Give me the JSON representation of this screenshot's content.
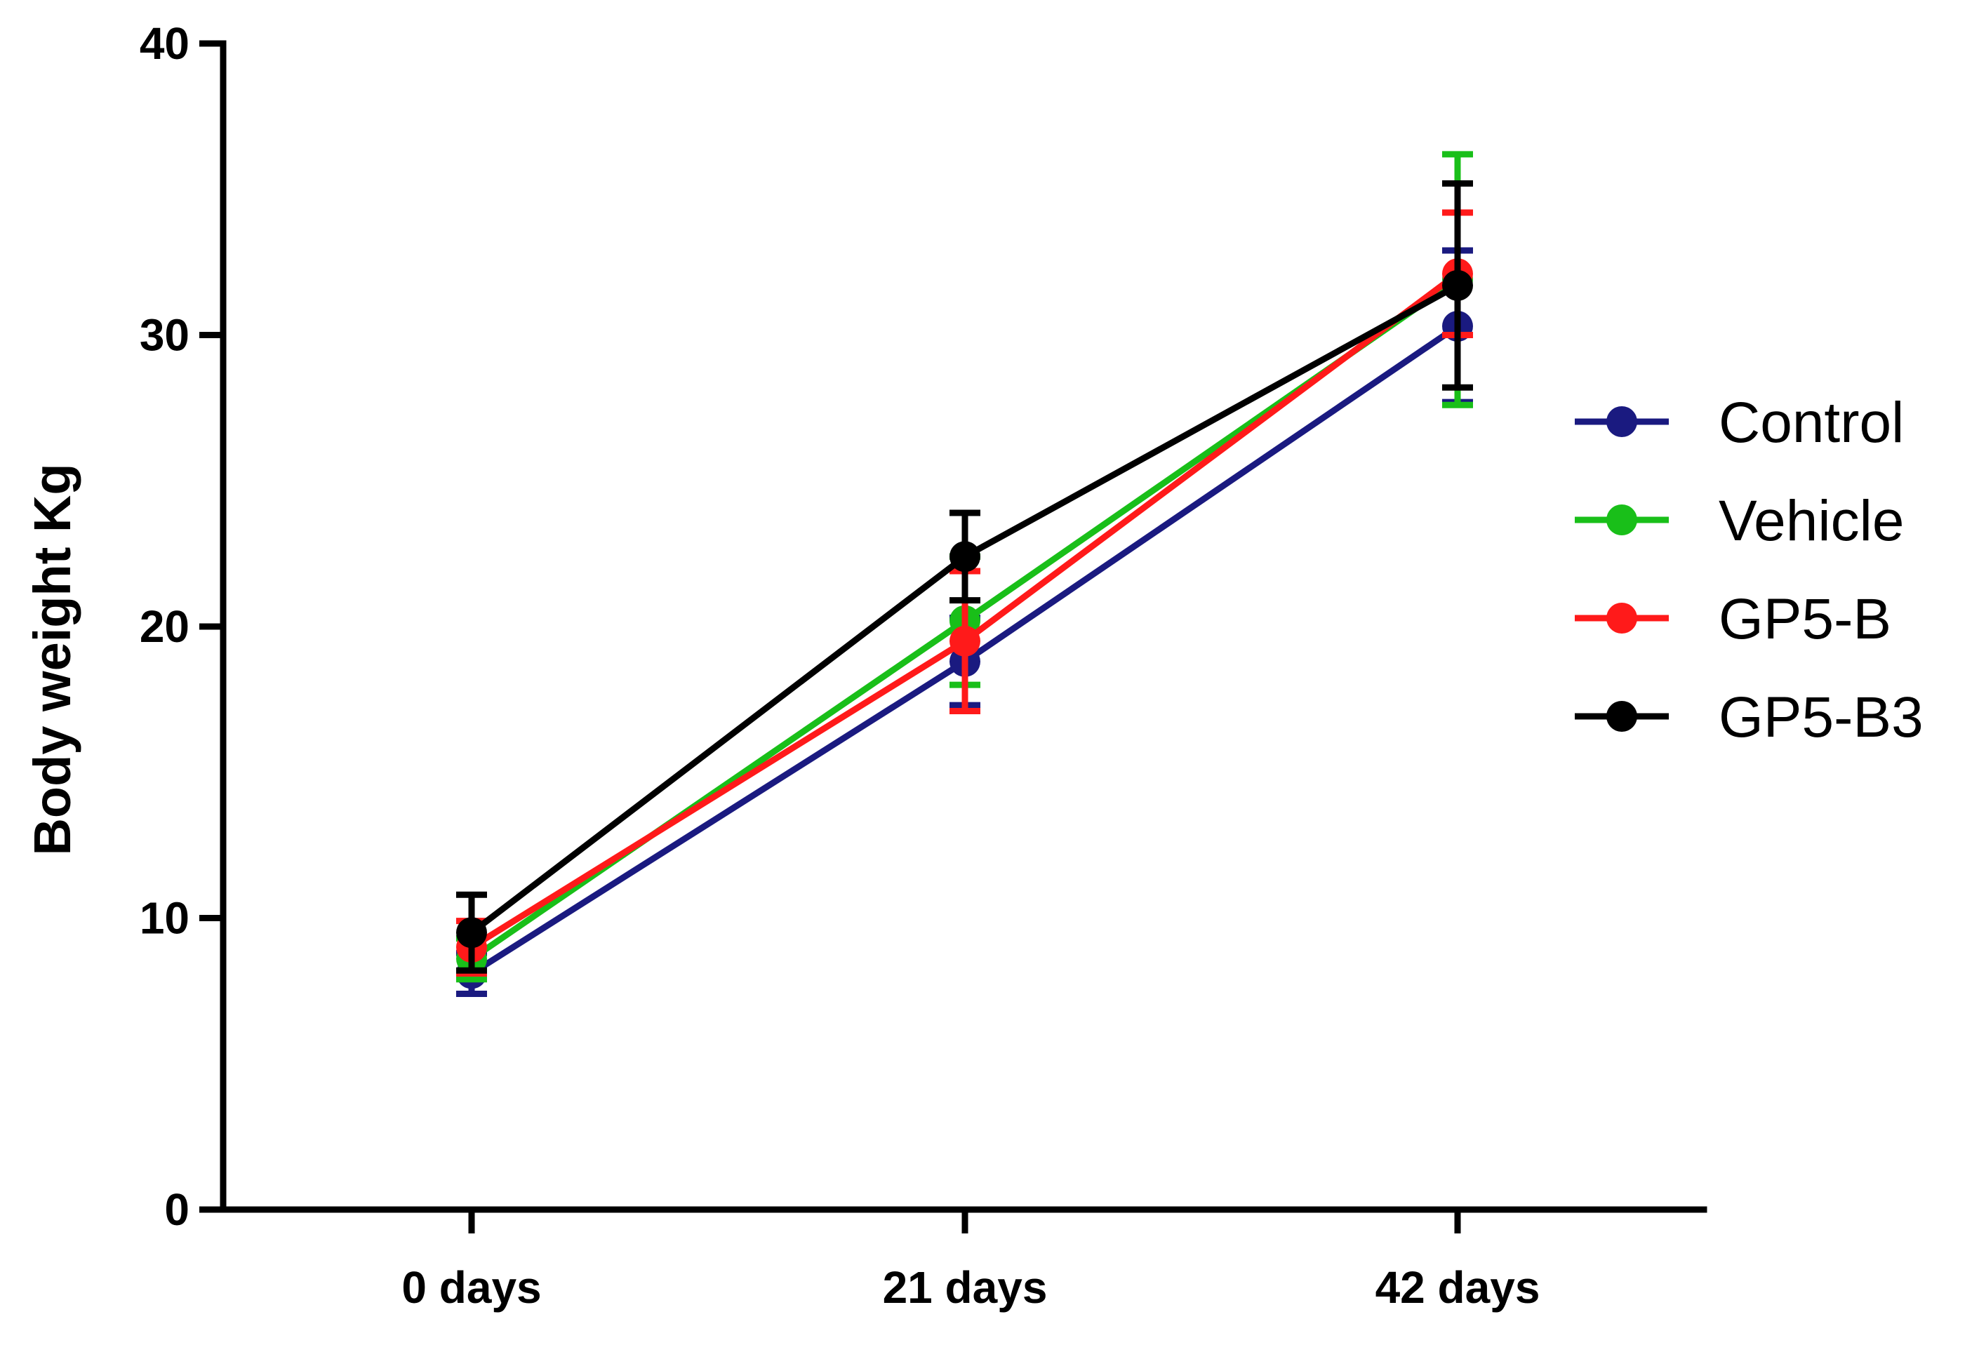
{
  "chart_data": {
    "type": "line",
    "title": "",
    "xlabel": "",
    "ylabel": "Body weight Kg",
    "categories": [
      "0 days",
      "21 days",
      "42 days"
    ],
    "ylim": [
      0,
      40
    ],
    "yticks": [
      0,
      10,
      20,
      30,
      40
    ],
    "grid": false,
    "legend_position": "right",
    "error_bars": true,
    "series": [
      {
        "name": "Control",
        "color": "#1a1a80",
        "values": [
          8.1,
          18.8,
          30.3
        ],
        "error": [
          0.7,
          1.5,
          2.6
        ]
      },
      {
        "name": "Vehicle",
        "color": "#19bf19",
        "values": [
          8.6,
          20.2,
          31.9
        ],
        "error": [
          0.7,
          2.2,
          4.3
        ]
      },
      {
        "name": "GP5-B",
        "color": "#ff1a1a",
        "values": [
          9.0,
          19.5,
          32.1
        ],
        "error": [
          0.9,
          2.4,
          2.1
        ]
      },
      {
        "name": "GP5-B3",
        "color": "#000000",
        "values": [
          9.5,
          22.4,
          31.7
        ],
        "error": [
          1.3,
          1.5,
          3.5
        ]
      }
    ]
  }
}
